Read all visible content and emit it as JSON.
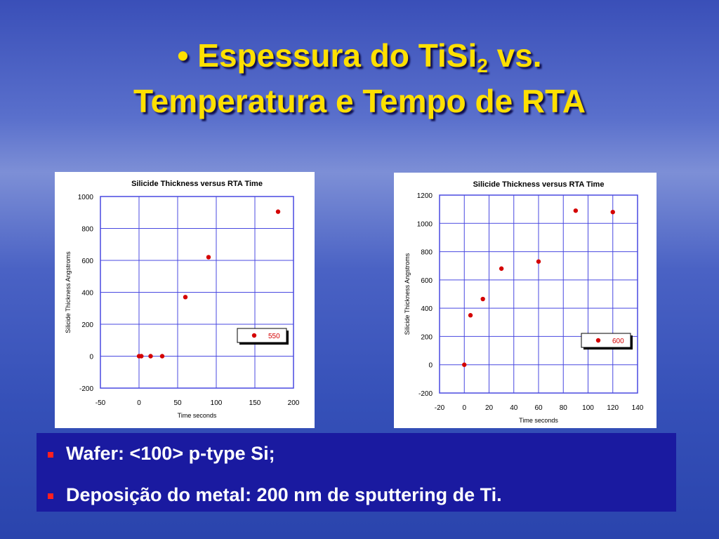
{
  "slide": {
    "title_before_sub": "• Espessura do TiSi",
    "title_sub": "2",
    "title_after_sub": " vs.",
    "title_line2": "Temperatura e Tempo de RTA",
    "bullets": [
      "Wafer: <100> p-type Si;",
      "Deposição do metal: 200 nm de sputtering de Ti."
    ]
  },
  "chart_data": [
    {
      "type": "scatter",
      "title": "Silicide Thickness versus RTA Time",
      "x_label": "Time seconds",
      "y_label": "Silicide Thickness Angstroms",
      "xlim": [
        -50,
        200
      ],
      "xticks": [
        -50,
        0,
        50,
        100,
        150,
        200
      ],
      "ylim": [
        -200,
        1000
      ],
      "yticks": [
        -200,
        0,
        200,
        400,
        600,
        800,
        1000
      ],
      "grid": true,
      "legend": "lower right",
      "series": [
        {
          "name": "550",
          "color": "#d40000",
          "x": [
            0,
            3,
            15,
            30,
            60,
            90,
            180
          ],
          "values": [
            0,
            0,
            0,
            0,
            370,
            620,
            905
          ]
        }
      ]
    },
    {
      "type": "scatter",
      "title": "Silicide Thickness versus RTA Time",
      "x_label": "Time seconds",
      "y_label": "Silicide Thickness Angstroms",
      "xlim": [
        -20,
        140
      ],
      "xticks": [
        -20,
        0,
        20,
        40,
        60,
        80,
        100,
        120,
        140
      ],
      "ylim": [
        -200,
        1200
      ],
      "yticks": [
        -200,
        0,
        200,
        400,
        600,
        800,
        1000,
        1200
      ],
      "grid": true,
      "legend": "lower right",
      "series": [
        {
          "name": "600",
          "color": "#d40000",
          "x": [
            0,
            5,
            15,
            30,
            60,
            90,
            120
          ],
          "values": [
            0,
            350,
            465,
            680,
            730,
            1090,
            1080
          ]
        }
      ]
    }
  ]
}
